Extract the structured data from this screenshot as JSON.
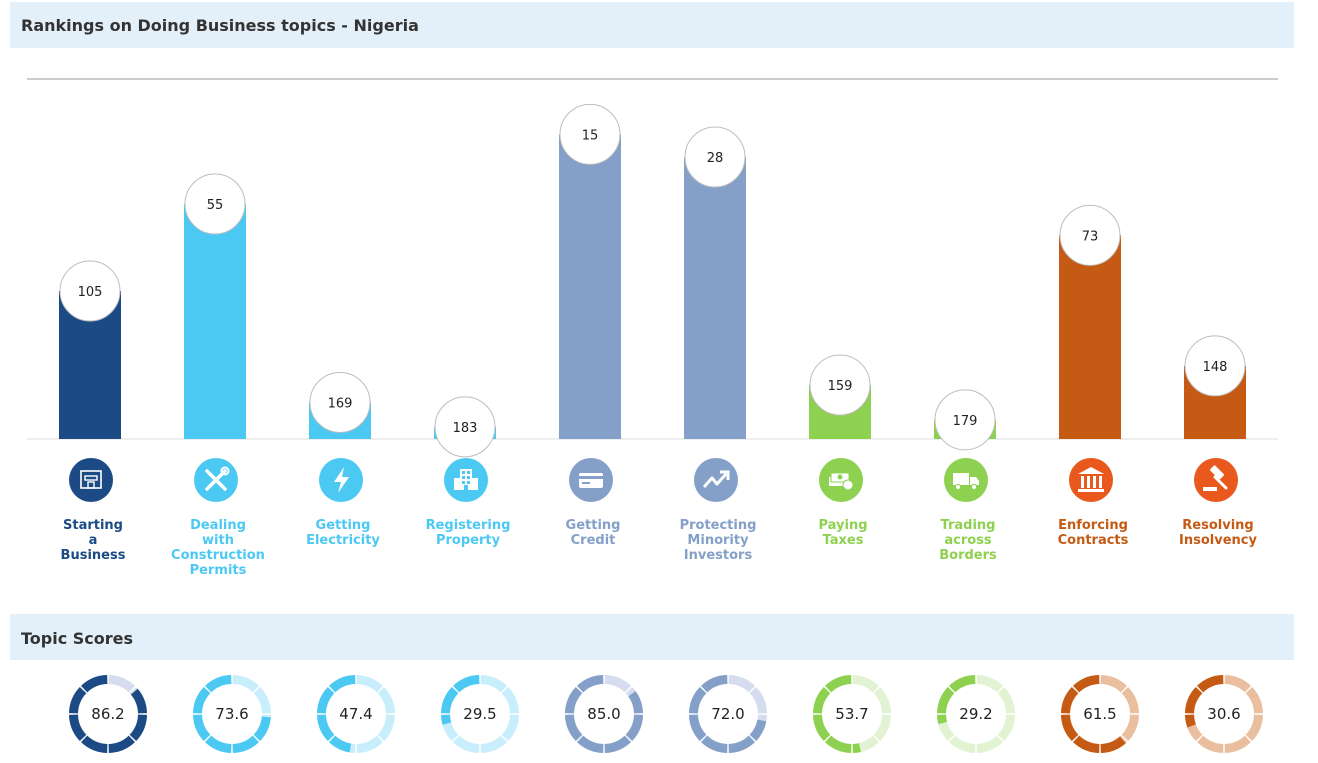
{
  "headers": {
    "rankings_title": "Rankings on Doing Business topics - Nigeria",
    "scores_title": "Topic Scores"
  },
  "chart_data": [
    {
      "type": "bar",
      "title": "Rankings on Doing Business topics - Nigeria",
      "categories": [
        "Starting a Business",
        "Dealing with Construction Permits",
        "Getting Electricity",
        "Registering Property",
        "Getting Credit",
        "Protecting Minority Investors",
        "Paying Taxes",
        "Trading across Borders",
        "Enforcing Contracts",
        "Resolving Insolvency"
      ],
      "label_lines": [
        [
          "Starting",
          "a",
          "Business"
        ],
        [
          "Dealing",
          "with",
          "Construction",
          "Permits"
        ],
        [
          "Getting",
          "Electricity"
        ],
        [
          "Registering",
          "Property"
        ],
        [
          "Getting",
          "Credit"
        ],
        [
          "Protecting",
          "Minority",
          "Investors"
        ],
        [
          "Paying",
          "Taxes"
        ],
        [
          "Trading",
          "across",
          "Borders"
        ],
        [
          "Enforcing",
          "Contracts"
        ],
        [
          "Resolving",
          "Insolvency"
        ]
      ],
      "values": [
        105,
        55,
        169,
        183,
        15,
        28,
        159,
        179,
        73,
        148
      ],
      "colors": [
        "#1b4a85",
        "#4cc9f3",
        "#4cc9f3",
        "#4cc9f3",
        "#85a0c8",
        "#85a0c8",
        "#8ed150",
        "#8ed150",
        "#c55a14",
        "#c55a14"
      ],
      "label_colors": [
        "#1b4a85",
        "#4cc9f3",
        "#4cc9f3",
        "#4cc9f3",
        "#85a0c8",
        "#85a0c8",
        "#8ed150",
        "#8ed150",
        "#c55a14",
        "#c55a14"
      ],
      "icons": [
        "building-icon",
        "wrench-screwdriver-icon",
        "lightning-icon",
        "property-building-icon",
        "credit-card-icon",
        "trend-up-icon",
        "money-stack-icon",
        "truck-icon",
        "courthouse-icon",
        "gavel-icon"
      ],
      "icon_bg_colors": [
        "#1b4a85",
        "#4cc9f3",
        "#4cc9f3",
        "#4cc9f3",
        "#85a0c8",
        "#85a0c8",
        "#8ed150",
        "#8ed150",
        "#e9591e",
        "#e9591e"
      ],
      "rank_max": 190,
      "grid": false
    },
    {
      "type": "pie",
      "title": "Topic Scores",
      "values": [
        "86.2",
        "73.6",
        "47.4",
        "29.5",
        "85.0",
        "72.0",
        "53.7",
        "29.2",
        "61.5",
        "30.6"
      ],
      "max": 100,
      "fill_colors": [
        "#1b4a85",
        "#4cc9f3",
        "#4cc9f3",
        "#4cc9f3",
        "#85a0c8",
        "#85a0c8",
        "#8ed150",
        "#8ed150",
        "#c55a14",
        "#c55a14"
      ],
      "track_colors": [
        "#d4dced",
        "#c8eefc",
        "#c8eefc",
        "#c8eefc",
        "#d4dced",
        "#d4dced",
        "#e2f3d3",
        "#e2f3d3",
        "#e9bfa0",
        "#e9bfa0"
      ]
    }
  ]
}
